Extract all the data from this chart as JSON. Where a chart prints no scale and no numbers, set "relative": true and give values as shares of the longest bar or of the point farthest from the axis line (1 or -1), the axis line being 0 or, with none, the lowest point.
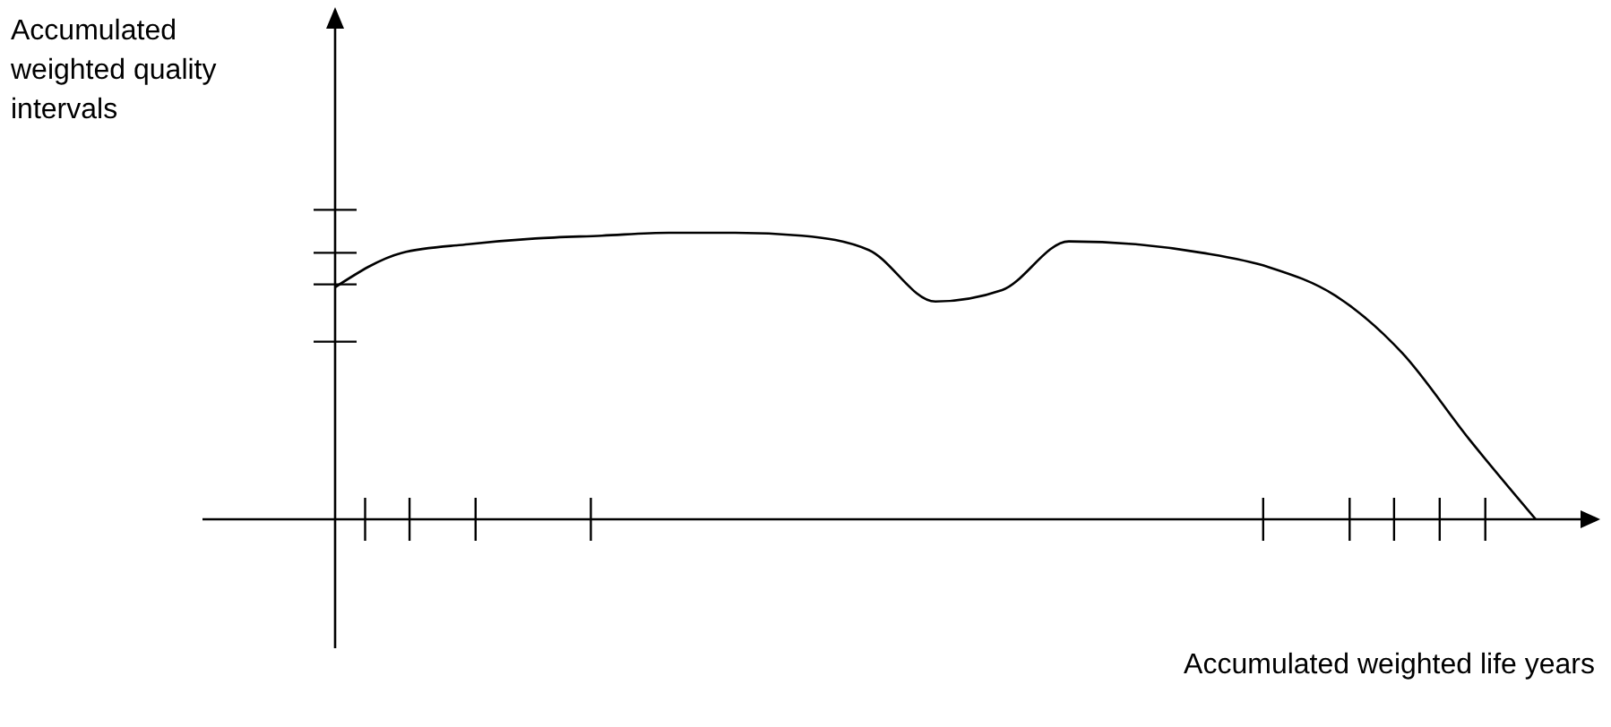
{
  "chart_data": {
    "type": "line",
    "relative": true,
    "xlabel": "Accumulated weighted life years",
    "ylabel": "Accumulated weighted quality intervals",
    "categories": [
      null,
      null,
      null,
      null,
      null,
      null,
      null,
      null,
      null,
      null,
      null,
      null,
      null,
      null,
      null,
      null,
      null,
      null,
      null
    ],
    "series": [
      {
        "color": "#000000",
        "values": [
          0.81,
          0.93,
          0.96,
          0.98,
          0.99,
          1.0,
          1.0,
          0.99,
          0.94,
          0.76,
          0.8,
          0.97,
          0.96,
          0.93,
          0.88,
          0.78,
          0.58,
          0.28,
          0
        ]
      }
    ],
    "line_style": "solid"
  }
}
